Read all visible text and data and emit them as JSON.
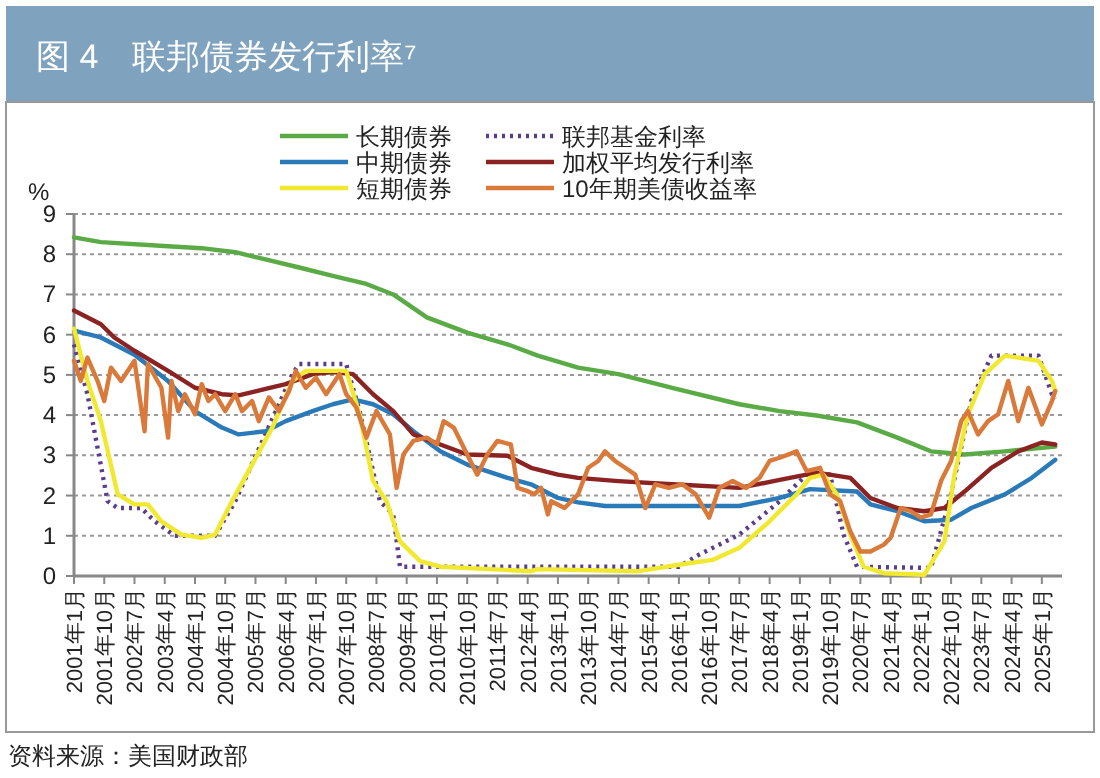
{
  "chart_data": {
    "type": "line",
    "title": "图 4　联邦债券发行利率⁷",
    "ylabel": "%",
    "annotations": [
      "资料来源：美国财政部"
    ],
    "xlim": [
      "2001-01",
      "2025-07"
    ],
    "ylim": [
      0,
      9
    ],
    "yticks": [
      0,
      1,
      2,
      3,
      4,
      5,
      6,
      7,
      8,
      9
    ],
    "xticks": [
      {
        "value": "2001-01",
        "label": "2001年1月"
      },
      {
        "value": "2001-10",
        "label": "2001年10月"
      },
      {
        "value": "2002-07",
        "label": "2002年7月"
      },
      {
        "value": "2003-04",
        "label": "2003年4月"
      },
      {
        "value": "2004-01",
        "label": "2004年1月"
      },
      {
        "value": "2004-10",
        "label": "2004年10月"
      },
      {
        "value": "2005-07",
        "label": "2005年7月"
      },
      {
        "value": "2006-04",
        "label": "2006年4月"
      },
      {
        "value": "2007-01",
        "label": "2007年1月"
      },
      {
        "value": "2007-10",
        "label": "2007年10月"
      },
      {
        "value": "2008-07",
        "label": "2008年7月"
      },
      {
        "value": "2009-04",
        "label": "2009年4月"
      },
      {
        "value": "2010-01",
        "label": "2010年1月"
      },
      {
        "value": "2010-10",
        "label": "2010年10月"
      },
      {
        "value": "2011-07",
        "label": "2011年7月"
      },
      {
        "value": "2012-04",
        "label": "2012年4月"
      },
      {
        "value": "2013-01",
        "label": "2013年1月"
      },
      {
        "value": "2013-10",
        "label": "2013年10月"
      },
      {
        "value": "2014-07",
        "label": "2014年7月"
      },
      {
        "value": "2015-04",
        "label": "2015年4月"
      },
      {
        "value": "2016-01",
        "label": "2016年1月"
      },
      {
        "value": "2016-10",
        "label": "2016年10月"
      },
      {
        "value": "2017-07",
        "label": "2017年7月"
      },
      {
        "value": "2018-04",
        "label": "2018年4月"
      },
      {
        "value": "2019-01",
        "label": "2019年1月"
      },
      {
        "value": "2019-10",
        "label": "2019年10月"
      },
      {
        "value": "2020-07",
        "label": "2020年7月"
      },
      {
        "value": "2021-04",
        "label": "2021年4月"
      },
      {
        "value": "2022-01",
        "label": "2022年1月"
      },
      {
        "value": "2022-10",
        "label": "2022年10月"
      },
      {
        "value": "2023-07",
        "label": "2023年7月"
      },
      {
        "value": "2024-04",
        "label": "2024年4月"
      },
      {
        "value": "2025-01",
        "label": "2025年1月"
      }
    ],
    "grid": "y",
    "legend": "top",
    "series": [
      {
        "name": "长期债券",
        "color": "#5aab46",
        "line_style": "solid",
        "x": [
          "2001-01",
          "2001-09",
          "2003-05",
          "2004-03",
          "2005-01",
          "2005-10",
          "2006-08",
          "2007-06",
          "2008-04",
          "2008-12",
          "2009-10",
          "2010-10",
          "2011-10",
          "2012-07",
          "2013-07",
          "2014-07",
          "2015-11",
          "2017-07",
          "2018-07",
          "2019-06",
          "2020-06",
          "2021-06",
          "2022-04",
          "2023-02",
          "2024-02",
          "2025-05"
        ],
        "values": [
          8.42,
          8.3,
          8.2,
          8.15,
          8.05,
          7.87,
          7.67,
          7.46,
          7.26,
          7.0,
          6.43,
          6.05,
          5.76,
          5.48,
          5.18,
          5.02,
          4.68,
          4.27,
          4.1,
          3.99,
          3.82,
          3.44,
          3.1,
          3.02,
          3.1,
          3.22
        ]
      },
      {
        "name": "联邦基金利率",
        "color": "#5b3c8e",
        "line_style": "dotted",
        "x": [
          "2001-01",
          "2001-05",
          "2001-11",
          "2002-02",
          "2002-09",
          "2003-01",
          "2003-07",
          "2004-07",
          "2005-01",
          "2006-06",
          "2006-08",
          "2007-10",
          "2008-02",
          "2008-08",
          "2008-12",
          "2009-02",
          "2012-07",
          "2016-01",
          "2016-07",
          "2017-07",
          "2018-07",
          "2019-04",
          "2019-10",
          "2020-02",
          "2020-06",
          "2022-04",
          "2022-10",
          "2023-04",
          "2023-10",
          "2024-12",
          "2025-04",
          "2025-05"
        ],
        "values": [
          5.76,
          4.52,
          1.86,
          1.69,
          1.69,
          1.36,
          1.0,
          1.0,
          1.86,
          5.02,
          5.27,
          5.27,
          4.1,
          1.86,
          1.53,
          0.23,
          0.23,
          0.23,
          0.53,
          1.03,
          1.86,
          2.61,
          2.52,
          1.03,
          0.23,
          0.2,
          2.03,
          4.35,
          5.48,
          5.48,
          4.52,
          4.4
        ]
      },
      {
        "name": "中期债券",
        "color": "#2a79b9",
        "line_style": "solid",
        "x": [
          "2001-01",
          "2001-09",
          "2002-07",
          "2003-05",
          "2004-01",
          "2004-09",
          "2005-02",
          "2005-10",
          "2006-04",
          "2006-12",
          "2007-06",
          "2007-12",
          "2008-06",
          "2008-12",
          "2009-06",
          "2010-02",
          "2010-10",
          "2011-10",
          "2012-05",
          "2013-01",
          "2013-07",
          "2014-03",
          "2015-11",
          "2017-07",
          "2018-07",
          "2019-04",
          "2020-06",
          "2020-10",
          "2021-06",
          "2022-02",
          "2022-10",
          "2023-04",
          "2024-02",
          "2024-10",
          "2025-05"
        ],
        "values": [
          6.1,
          5.93,
          5.5,
          4.85,
          4.1,
          3.69,
          3.52,
          3.6,
          3.85,
          4.1,
          4.27,
          4.39,
          4.27,
          4.02,
          3.6,
          3.1,
          2.77,
          2.44,
          2.28,
          1.94,
          1.83,
          1.74,
          1.74,
          1.74,
          1.94,
          2.16,
          2.1,
          1.78,
          1.61,
          1.36,
          1.4,
          1.69,
          2.03,
          2.44,
          2.89
        ]
      },
      {
        "name": "加权平均发行利率",
        "color": "#8b2323",
        "line_style": "solid",
        "x": [
          "2001-01",
          "2001-09",
          "2002-01",
          "2002-07",
          "2003-05",
          "2004-01",
          "2004-09",
          "2005-02",
          "2005-10",
          "2006-04",
          "2006-12",
          "2007-06",
          "2007-12",
          "2008-06",
          "2008-12",
          "2009-06",
          "2010-02",
          "2010-10",
          "2011-10",
          "2012-05",
          "2013-01",
          "2013-07",
          "2014-07",
          "2015-11",
          "2017-07",
          "2018-07",
          "2019-06",
          "2020-04",
          "2020-10",
          "2021-06",
          "2022-02",
          "2022-08",
          "2023-02",
          "2023-10",
          "2024-06",
          "2025-01",
          "2025-05"
        ],
        "values": [
          6.6,
          6.26,
          5.93,
          5.6,
          5.1,
          4.68,
          4.52,
          4.49,
          4.65,
          4.77,
          5.02,
          5.07,
          5.02,
          4.52,
          4.1,
          3.52,
          3.27,
          3.02,
          2.99,
          2.69,
          2.52,
          2.44,
          2.36,
          2.28,
          2.19,
          2.39,
          2.57,
          2.44,
          1.94,
          1.69,
          1.61,
          1.69,
          2.1,
          2.69,
          3.1,
          3.32,
          3.27
        ]
      },
      {
        "name": "短期债券",
        "color": "#f0e930",
        "line_style": "solid",
        "x": [
          "2001-01",
          "2001-05",
          "2001-09",
          "2002-02",
          "2002-07",
          "2002-11",
          "2003-03",
          "2003-09",
          "2004-03",
          "2004-07",
          "2004-12",
          "2005-06",
          "2005-12",
          "2006-06",
          "2006-10",
          "2007-10",
          "2008-02",
          "2008-06",
          "2008-10",
          "2009-02",
          "2009-08",
          "2010-02",
          "2012-05",
          "2012-07",
          "2015-01",
          "2016-01",
          "2016-11",
          "2017-07",
          "2018-04",
          "2018-12",
          "2019-04",
          "2019-08",
          "2019-12",
          "2020-04",
          "2020-08",
          "2021-02",
          "2022-02",
          "2022-08",
          "2022-11",
          "2023-03",
          "2023-08",
          "2024-02",
          "2024-12",
          "2025-04",
          "2025-05"
        ],
        "values": [
          6.15,
          4.85,
          3.85,
          2.03,
          1.78,
          1.78,
          1.36,
          1.03,
          0.95,
          1.03,
          1.86,
          2.77,
          3.69,
          4.85,
          5.1,
          5.1,
          4.02,
          2.36,
          1.86,
          0.86,
          0.37,
          0.23,
          0.12,
          0.17,
          0.12,
          0.28,
          0.4,
          0.7,
          1.36,
          2.03,
          2.44,
          2.52,
          2.03,
          1.03,
          0.23,
          0.07,
          0.03,
          0.86,
          2.52,
          4.02,
          5.02,
          5.48,
          5.35,
          4.85,
          4.6
        ]
      },
      {
        "name": "10年期美债收益率",
        "color": "#d9793a",
        "line_style": "solid",
        "x": [
          "2001-01",
          "2001-03",
          "2001-05",
          "2001-08",
          "2001-10",
          "2001-12",
          "2002-03",
          "2002-07",
          "2002-10",
          "2002-11",
          "2003-03",
          "2003-05",
          "2003-06",
          "2003-08",
          "2003-10",
          "2004-01",
          "2004-03",
          "2004-05",
          "2004-07",
          "2004-10",
          "2005-01",
          "2005-03",
          "2005-06",
          "2005-08",
          "2005-11",
          "2006-02",
          "2006-05",
          "2006-07",
          "2006-10",
          "2007-01",
          "2007-04",
          "2007-08",
          "2007-10",
          "2008-01",
          "2008-04",
          "2008-07",
          "2008-11",
          "2009-01",
          "2009-03",
          "2009-06",
          "2009-10",
          "2010-01",
          "2010-03",
          "2010-06",
          "2010-10",
          "2011-01",
          "2011-04",
          "2011-07",
          "2011-11",
          "2012-01",
          "2012-04",
          "2012-06",
          "2012-08",
          "2012-10",
          "2012-11",
          "2013-03",
          "2013-07",
          "2013-10",
          "2014-01",
          "2014-03",
          "2014-06",
          "2014-09",
          "2014-12",
          "2015-03",
          "2015-06",
          "2015-10",
          "2016-02",
          "2016-06",
          "2016-10",
          "2017-01",
          "2017-05",
          "2017-09",
          "2018-01",
          "2018-04",
          "2018-07",
          "2018-12",
          "2019-03",
          "2019-07",
          "2019-10",
          "2020-01",
          "2020-04",
          "2020-07",
          "2020-10",
          "2021-02",
          "2021-04",
          "2021-07",
          "2021-10",
          "2022-01",
          "2022-04",
          "2022-07",
          "2022-10",
          "2023-01",
          "2023-03",
          "2023-06",
          "2023-09",
          "2023-12",
          "2024-03",
          "2024-06",
          "2024-09",
          "2025-01",
          "2025-04",
          "2025-05"
        ],
        "values": [
          5.35,
          4.85,
          5.43,
          4.85,
          4.35,
          5.18,
          4.85,
          5.35,
          3.6,
          5.27,
          4.68,
          3.44,
          4.85,
          4.1,
          4.52,
          4.02,
          4.77,
          4.35,
          4.52,
          4.1,
          4.52,
          4.1,
          4.35,
          3.85,
          4.44,
          4.1,
          4.6,
          5.1,
          4.68,
          4.93,
          4.52,
          5.02,
          4.52,
          4.19,
          3.44,
          4.1,
          3.52,
          2.19,
          3.02,
          3.36,
          3.44,
          3.27,
          3.85,
          3.69,
          3.02,
          2.52,
          3.02,
          3.36,
          3.27,
          2.19,
          2.11,
          2.03,
          2.19,
          1.53,
          1.86,
          1.69,
          2.03,
          2.69,
          2.86,
          3.1,
          2.86,
          2.69,
          2.52,
          1.69,
          2.28,
          2.19,
          2.28,
          2.03,
          1.45,
          2.19,
          2.36,
          2.19,
          2.44,
          2.86,
          2.94,
          3.1,
          2.61,
          2.69,
          2.03,
          1.86,
          1.11,
          0.61,
          0.61,
          0.78,
          0.95,
          1.69,
          1.61,
          1.45,
          1.53,
          2.36,
          2.86,
          3.85,
          4.1,
          3.52,
          3.85,
          4.02,
          4.85,
          3.85,
          4.68,
          3.77,
          4.35,
          4.6
        ]
      }
    ]
  }
}
